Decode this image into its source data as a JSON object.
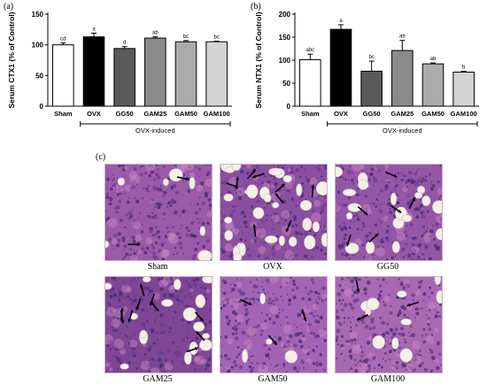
{
  "panel_labels": {
    "a": "(a)",
    "b": "(b)",
    "c": "(c)"
  },
  "chart_data": [
    {
      "type": "bar",
      "panel": "(a)",
      "ylabel": "Serum CTX1 (% of Control)",
      "categories": [
        "Sham",
        "OVX",
        "GG50",
        "GAM25",
        "GAM50",
        "GAM100"
      ],
      "values": [
        100,
        113,
        94,
        111,
        105,
        105
      ],
      "errors": [
        3,
        6,
        3,
        2,
        2,
        1
      ],
      "letters": [
        "cd",
        "a",
        "d",
        "ab",
        "bc",
        "bc"
      ],
      "bar_colors": [
        "#ffffff",
        "#000000",
        "#5a5a5a",
        "#8a8a8a",
        "#ababab",
        "#d3d3d3"
      ],
      "ylim": [
        0,
        150
      ],
      "yticks": [
        0,
        50,
        100,
        150
      ],
      "group_label": "OVX-induced"
    },
    {
      "type": "bar",
      "panel": "(b)",
      "ylabel": "Serum NTX1 (% of Control)",
      "categories": [
        "Sham",
        "OVX",
        "GG50",
        "GAM25",
        "GAM50",
        "GAM100"
      ],
      "values": [
        101,
        167,
        76,
        121,
        92,
        74
      ],
      "errors": [
        12,
        10,
        22,
        22,
        2,
        2
      ],
      "letters": [
        "abc",
        "a",
        "bc",
        "ab",
        "ab",
        "b"
      ],
      "bar_colors": [
        "#ffffff",
        "#000000",
        "#5a5a5a",
        "#8a8a8a",
        "#ababab",
        "#d3d3d3"
      ],
      "ylim": [
        0,
        200
      ],
      "yticks": [
        0,
        50,
        100,
        150,
        200
      ],
      "group_label": "OVX-induced"
    }
  ],
  "histology": [
    {
      "label": "Sham",
      "bg": "#9a5aa8",
      "adipocytes": 7,
      "arrows": 2
    },
    {
      "label": "OVX",
      "bg": "#8a4fa0",
      "adipocytes": 30,
      "arrows": 9
    },
    {
      "label": "GG50",
      "bg": "#9456a6",
      "adipocytes": 18,
      "arrows": 6
    },
    {
      "label": "GAM25",
      "bg": "#7f4696",
      "adipocytes": 16,
      "arrows": 10
    },
    {
      "label": "GAM50",
      "bg": "#a363b4",
      "adipocytes": 4,
      "arrows": 3
    },
    {
      "label": "GAM100",
      "bg": "#a868b2",
      "adipocytes": 10,
      "arrows": 3
    }
  ]
}
